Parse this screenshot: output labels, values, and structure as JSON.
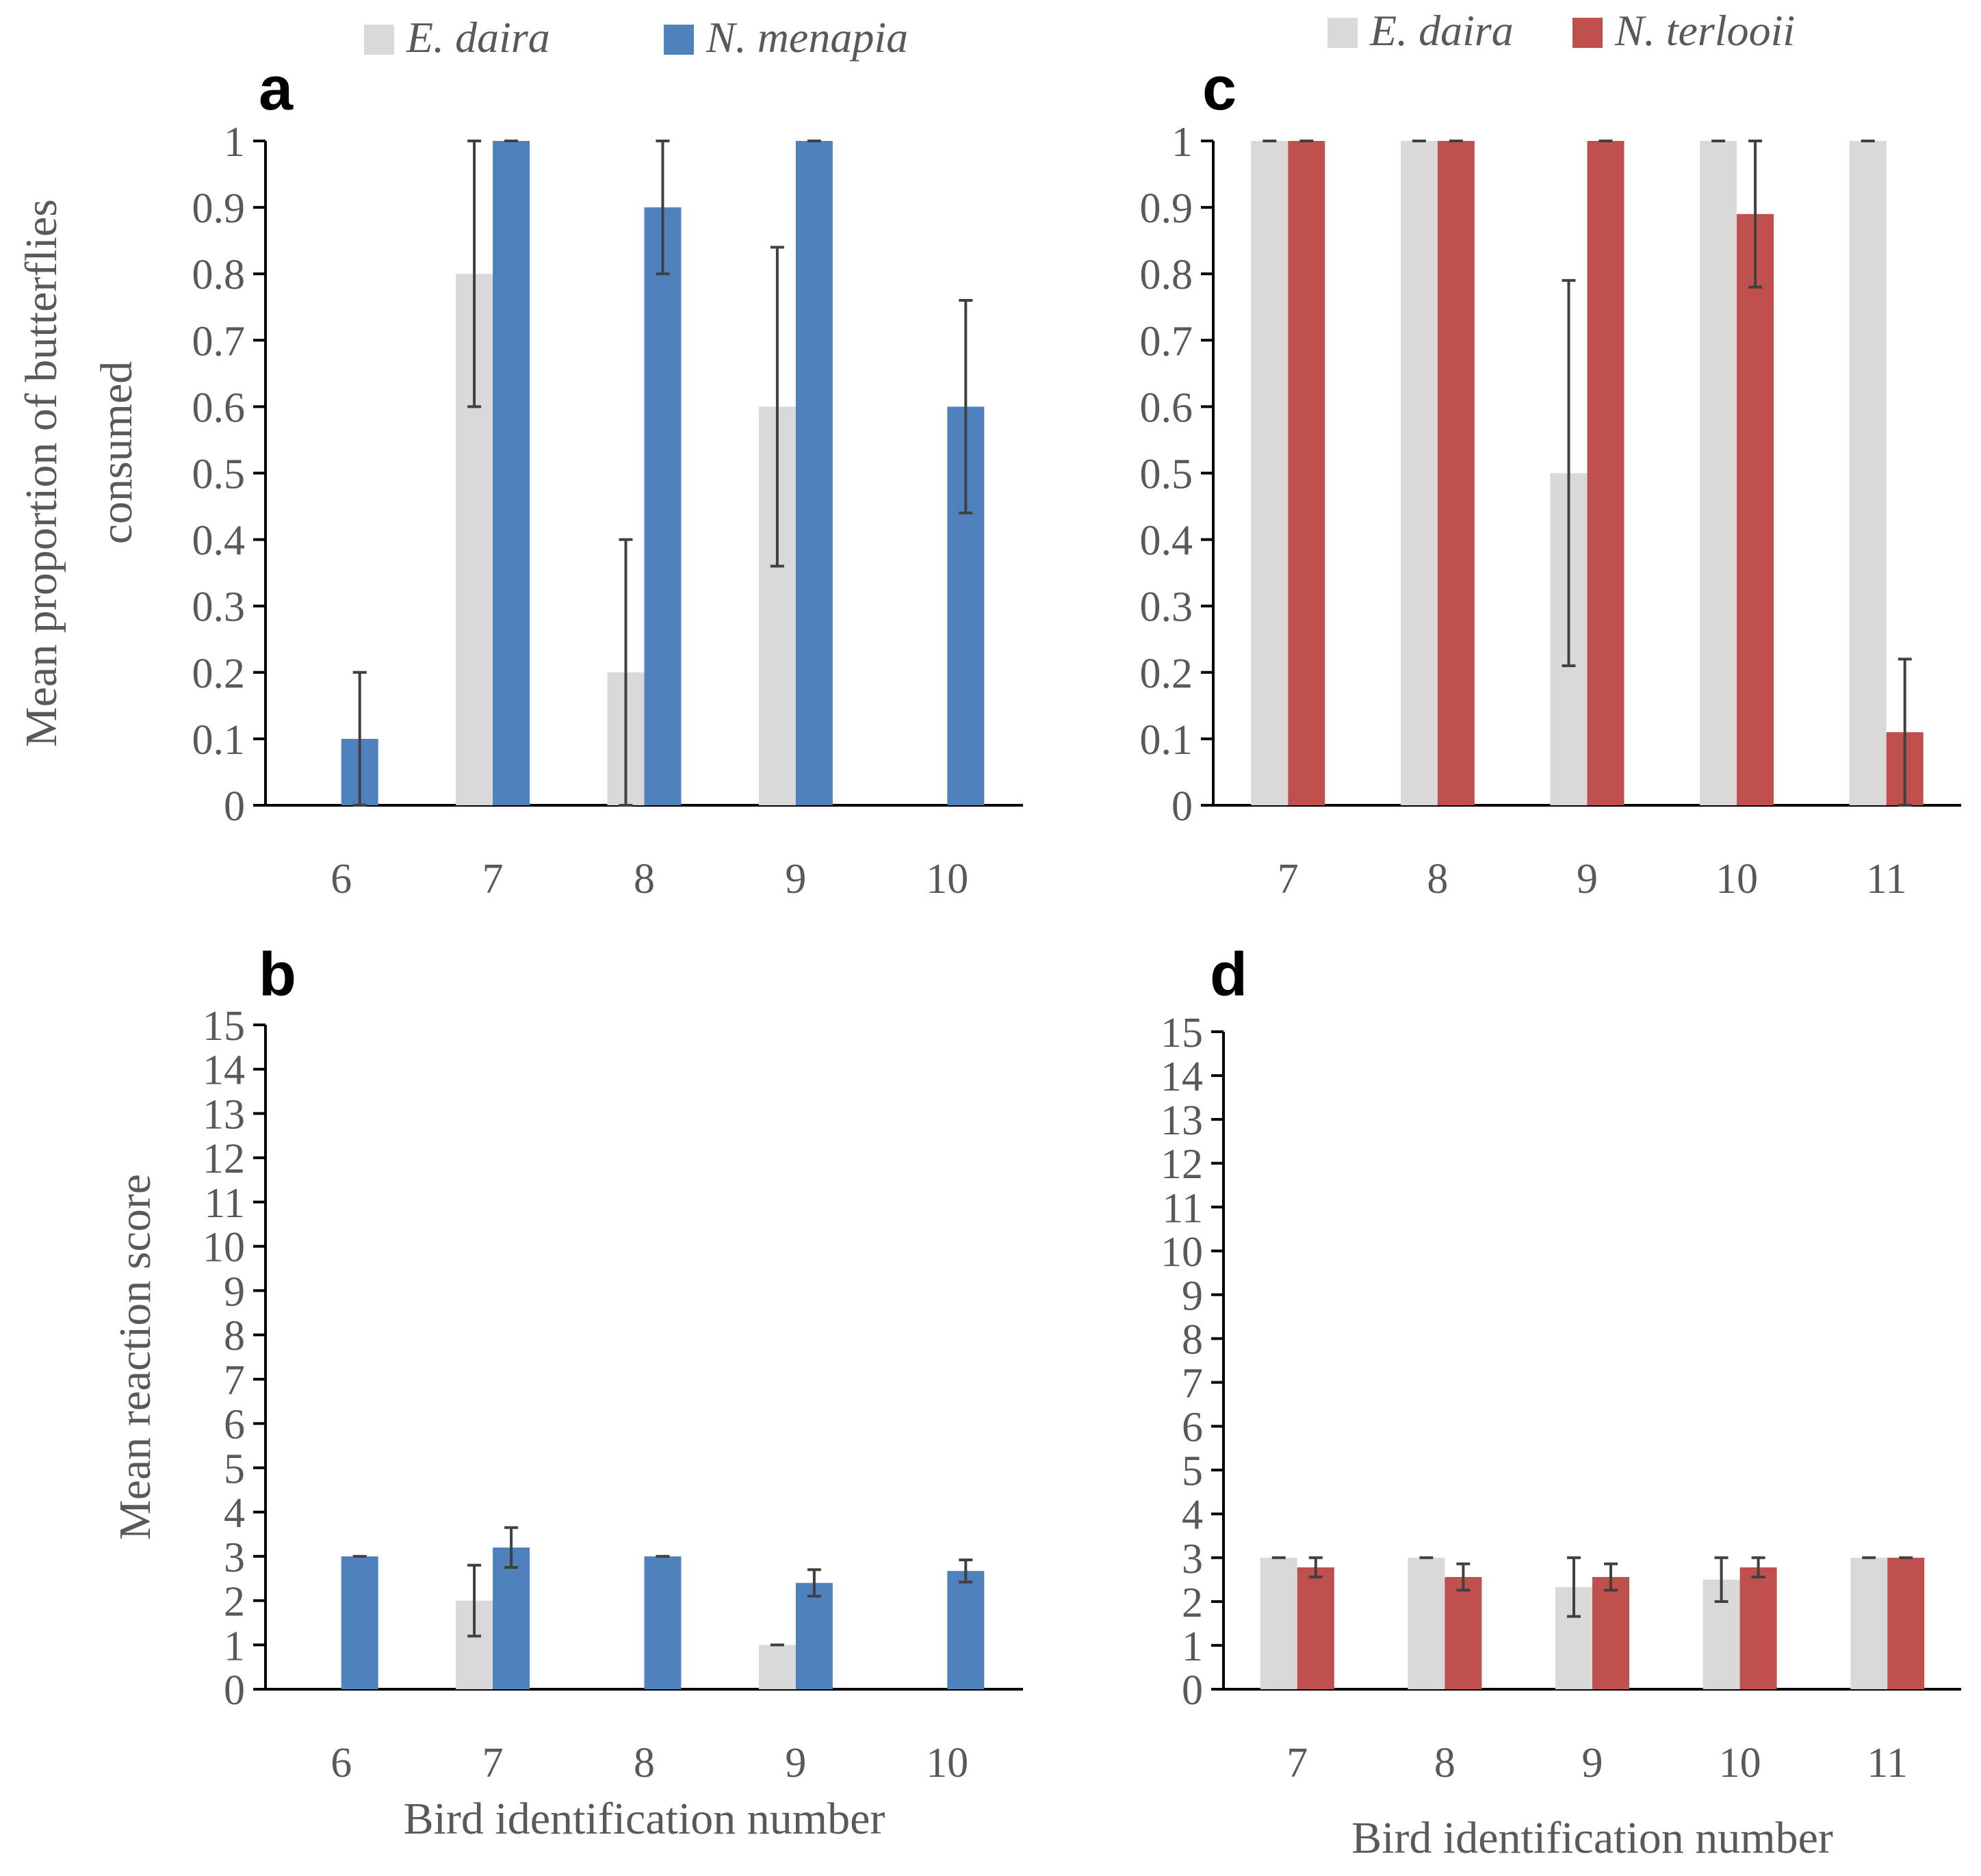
{
  "colors": {
    "daira": "#d9d9d9",
    "menapia": "#4f81bd",
    "terlooii": "#c0504d",
    "axis": "#000000",
    "text": "#595959",
    "error": "#404040"
  },
  "chart_data": [
    {
      "panel": "a",
      "type": "bar",
      "ylabel_line1": "Mean proportion of butterflies",
      "ylabel_line2": "consumed",
      "xlabel": "",
      "ylim": [
        0,
        1
      ],
      "yticks": [
        "0",
        "0.1",
        "0.2",
        "0.3",
        "0.4",
        "0.5",
        "0.6",
        "0.7",
        "0.8",
        "0.9",
        "1"
      ],
      "categories": [
        "6",
        "7",
        "8",
        "9",
        "10"
      ],
      "legend": "top",
      "series": [
        {
          "name": "E. daira",
          "color": "daira",
          "values": [
            0,
            0.8,
            0.2,
            0.6,
            0
          ],
          "err": [
            0,
            0.2,
            0.2,
            0.24,
            0
          ]
        },
        {
          "name": "N. menapia",
          "color": "menapia",
          "values": [
            0.1,
            1.0,
            0.9,
            1.0,
            0.6
          ],
          "err": [
            0.1,
            0,
            0.1,
            0,
            0.16
          ]
        }
      ]
    },
    {
      "panel": "b",
      "type": "bar",
      "ylabel_line1": "Mean reaction score",
      "ylabel_line2": "",
      "xlabel": "Bird identification number",
      "ylim": [
        0,
        15
      ],
      "yticks": [
        "0",
        "1",
        "2",
        "3",
        "4",
        "5",
        "6",
        "7",
        "8",
        "9",
        "10",
        "11",
        "12",
        "13",
        "14",
        "15"
      ],
      "categories": [
        "6",
        "7",
        "8",
        "9",
        "10"
      ],
      "series": [
        {
          "name": "E. daira",
          "color": "daira",
          "values": [
            0,
            2.0,
            0,
            1.0,
            0
          ],
          "err": [
            0,
            0.8,
            0,
            0,
            0
          ]
        },
        {
          "name": "N. menapia",
          "color": "menapia",
          "values": [
            3.0,
            3.2,
            3.0,
            2.4,
            2.67
          ],
          "err": [
            0,
            0.45,
            0,
            0.3,
            0.25
          ]
        }
      ]
    },
    {
      "panel": "c",
      "type": "bar",
      "ylabel_line1": "",
      "ylabel_line2": "",
      "xlabel": "",
      "ylim": [
        0,
        1
      ],
      "yticks": [
        "0",
        "0.1",
        "0.2",
        "0.3",
        "0.4",
        "0.5",
        "0.6",
        "0.7",
        "0.8",
        "0.9",
        "1"
      ],
      "categories": [
        "7",
        "8",
        "9",
        "10",
        "11"
      ],
      "legend": "top",
      "series": [
        {
          "name": "E. daira",
          "color": "daira",
          "values": [
            1.0,
            1.0,
            0.5,
            1.0,
            1.0
          ],
          "err": [
            0,
            0,
            0.29,
            0,
            0
          ]
        },
        {
          "name": "N. terlooii",
          "color": "terlooii",
          "values": [
            1.0,
            1.0,
            1.0,
            0.89,
            0.11
          ],
          "err": [
            0,
            0,
            0,
            0.11,
            0.11
          ]
        }
      ]
    },
    {
      "panel": "d",
      "type": "bar",
      "ylabel_line1": "",
      "ylabel_line2": "",
      "xlabel": "Bird identification number",
      "ylim": [
        0,
        15
      ],
      "yticks": [
        "0",
        "1",
        "2",
        "3",
        "4",
        "5",
        "6",
        "7",
        "8",
        "9",
        "10",
        "11",
        "12",
        "13",
        "14",
        "15"
      ],
      "categories": [
        "7",
        "8",
        "9",
        "10",
        "11"
      ],
      "series": [
        {
          "name": "E. daira",
          "color": "daira",
          "values": [
            3.0,
            3.0,
            2.33,
            2.5,
            3.0
          ],
          "err": [
            0,
            0,
            0.67,
            0.5,
            0
          ]
        },
        {
          "name": "N. terlooii",
          "color": "terlooii",
          "values": [
            2.78,
            2.56,
            2.56,
            2.78,
            3.0
          ],
          "err": [
            0.22,
            0.3,
            0.3,
            0.22,
            0
          ]
        }
      ]
    }
  ]
}
